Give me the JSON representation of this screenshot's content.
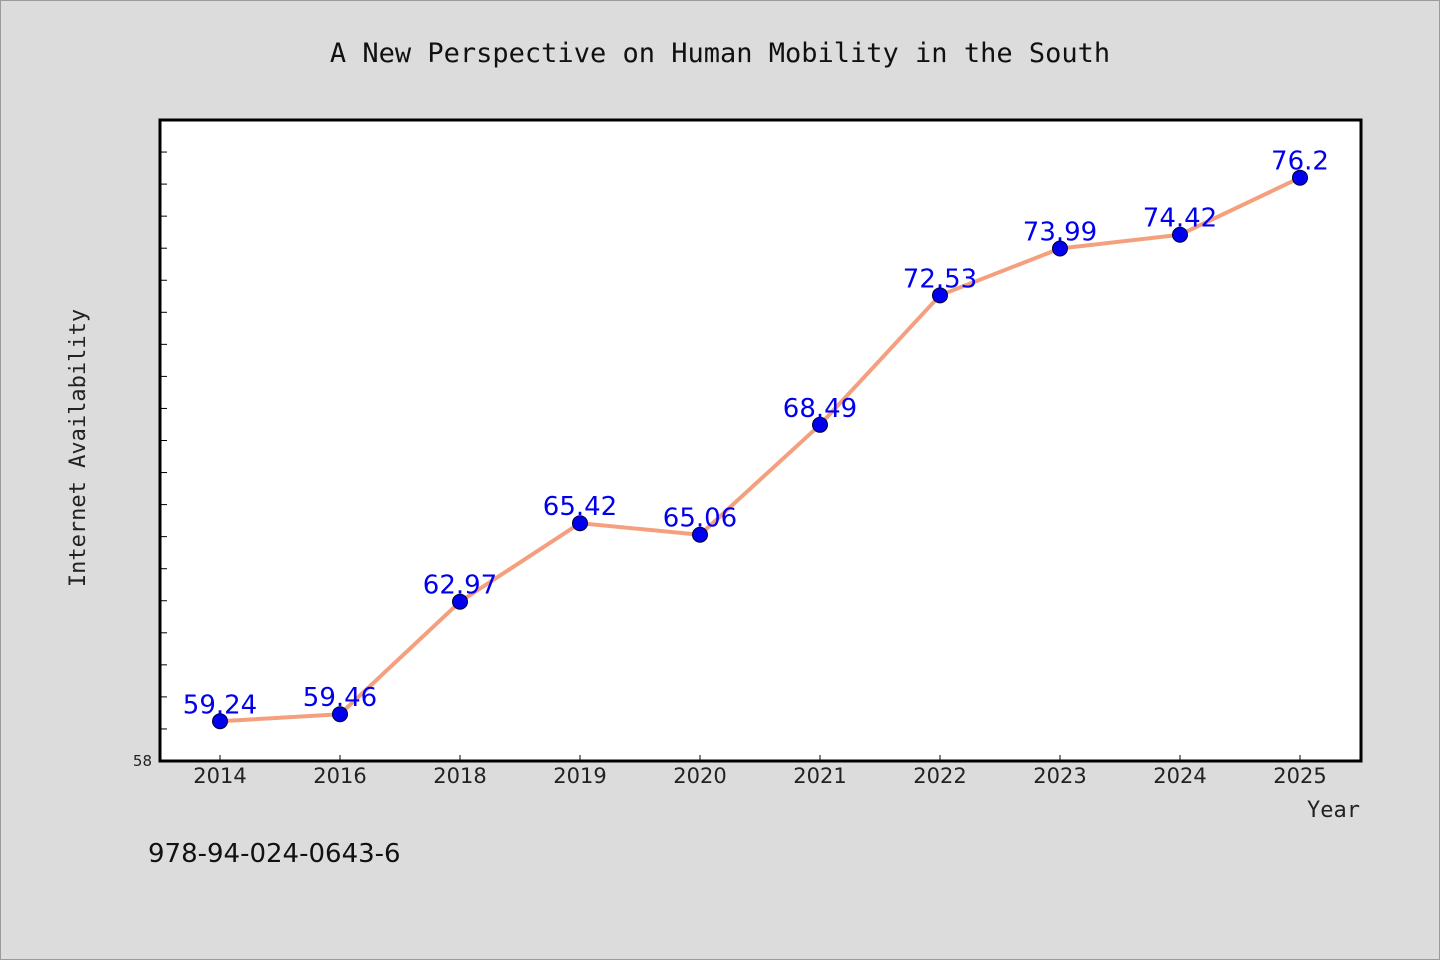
{
  "chart_data": {
    "type": "line",
    "title": "A New Perspective on Human Mobility in the South",
    "xlabel": "Year",
    "ylabel": "Internet Availability",
    "categories": [
      "2014",
      "2016",
      "2018",
      "2019",
      "2020",
      "2021",
      "2022",
      "2023",
      "2024",
      "2025"
    ],
    "values": [
      59.24,
      59.46,
      62.97,
      65.42,
      65.06,
      68.49,
      72.53,
      73.99,
      74.42,
      76.2
    ],
    "data_labels": [
      "59.24",
      "59.46",
      "62.97",
      "65.42",
      "65.06",
      "68.49",
      "72.53",
      "73.99",
      "74.42",
      "76.2"
    ],
    "ylim": [
      58,
      78
    ],
    "y_tick_labels": [
      "58"
    ],
    "grid": false,
    "legend": "none",
    "colors": {
      "line": "#f4a07e",
      "marker": "#0000ee",
      "data_label": "#0000ee",
      "plot_background": "#ffffff",
      "figure_background": "#dcdcdc"
    }
  },
  "footer": {
    "isbn": "978-94-024-0643-6"
  }
}
